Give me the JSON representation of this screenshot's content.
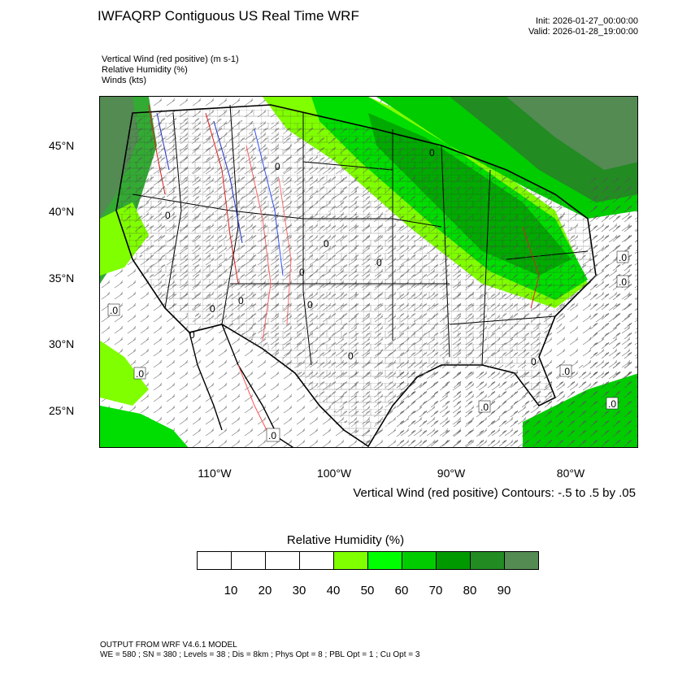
{
  "title": "IWFAQRP Contiguous US Real Time WRF",
  "init": "Init: 2026-01-27_00:00:00",
  "valid": "Valid: 2026-01-28_19:00:00",
  "fields": [
    "Vertical Wind (red positive)   (m s-1)",
    "Relative Humidity   (%)",
    "Winds   (kts)"
  ],
  "map": {
    "lat_labels": [
      "45°N",
      "40°N",
      "35°N",
      "30°N",
      "25°N"
    ],
    "lon_labels": [
      "110°W",
      "100°W",
      "90°W",
      "80°W"
    ],
    "contour_note": "Vertical Wind (red positive) Contours: -.5 to .5 by .05",
    "zero_label": "0"
  },
  "colorbar": {
    "title": "Relative Humidity  (%)",
    "colors": [
      "#ffffff",
      "#ffffff",
      "#ffffff",
      "#ffffff",
      "#80ff00",
      "#00ff00",
      "#00cc00",
      "#009900",
      "#228b22",
      "#538b53"
    ],
    "labels": [
      "10",
      "20",
      "30",
      "40",
      "50",
      "60",
      "70",
      "80",
      "90"
    ]
  },
  "footer": {
    "line1": "OUTPUT FROM WRF V4.6.1 MODEL",
    "line2": "WE = 580 ; SN = 380 ; Levels = 38 ; Dis = 8km ; Phys Opt = 8 ; PBL Opt = 1 ; Cu Opt = 3"
  }
}
